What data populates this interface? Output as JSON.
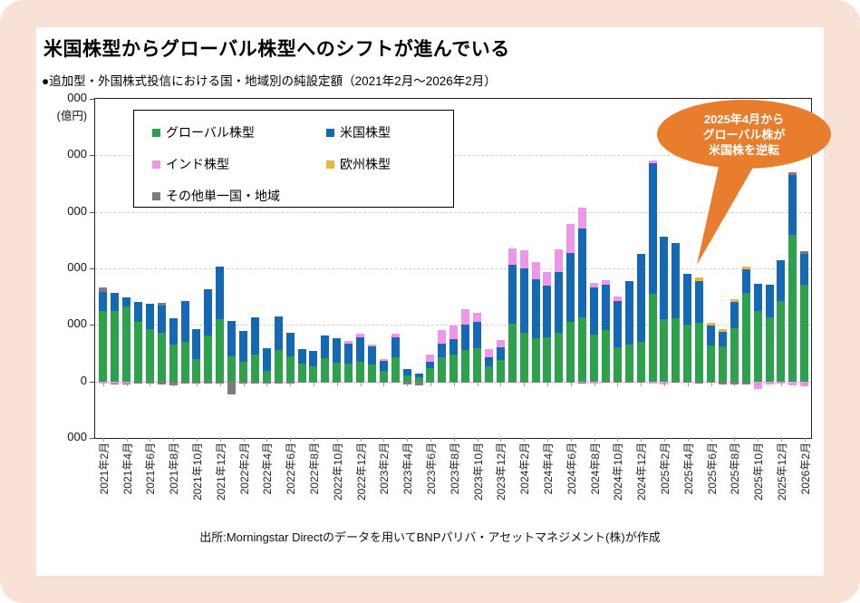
{
  "frame": {
    "background": "#FAE1D5",
    "card_background": "#ffffff"
  },
  "title": "米国株型からグローバル株型へのシフトが進んでいる",
  "subtitle": "●追加型・外国株式投信における国・地域別の純設定額（2021年2月～2026年2月）",
  "source": "出所:Morningstar Directのデータを用いてBNPパリバ・アセットマネジメント(株)が作成",
  "annotation": {
    "lines": [
      "2025年4月から",
      "グローバル株が",
      "米国株を逆転"
    ],
    "color": "#E87D2D",
    "points_to": "2025年4月"
  },
  "y_axis": {
    "unit_label": "(億円)",
    "tick_labels": [
      "000",
      "000",
      "000",
      "000",
      "000",
      "0",
      "000"
    ],
    "tick_values": [
      5000,
      4000,
      3000,
      2000,
      1000,
      0,
      -1000
    ]
  },
  "chart_data": {
    "type": "bar",
    "stacked": true,
    "title": "追加型・外国株式投信における国・地域別の純設定額（2021年2月～2026年2月）",
    "xlabel": "",
    "ylabel": "(億円)",
    "ylim": [
      -1000,
      5000
    ],
    "grid": "horizontal-dashed",
    "legend_position": "top-left-box",
    "categories": [
      "2021年2月",
      "2021年3月",
      "2021年4月",
      "2021年5月",
      "2021年6月",
      "2021年7月",
      "2021年8月",
      "2021年9月",
      "2021年10月",
      "2021年11月",
      "2021年12月",
      "2022年1月",
      "2022年2月",
      "2022年3月",
      "2022年4月",
      "2022年5月",
      "2022年6月",
      "2022年7月",
      "2022年8月",
      "2022年9月",
      "2022年10月",
      "2022年11月",
      "2022年12月",
      "2023年1月",
      "2023年2月",
      "2023年3月",
      "2023年4月",
      "2023年5月",
      "2023年6月",
      "2023年7月",
      "2023年8月",
      "2023年9月",
      "2023年10月",
      "2023年11月",
      "2023年12月",
      "2024年1月",
      "2024年2月",
      "2024年3月",
      "2024年4月",
      "2024年5月",
      "2024年6月",
      "2024年7月",
      "2024年8月",
      "2024年9月",
      "2024年10月",
      "2024年11月",
      "2024年12月",
      "2025年1月",
      "2025年2月",
      "2025年3月",
      "2025年4月",
      "2025年5月",
      "2025年6月",
      "2025年7月",
      "2025年8月",
      "2025年9月",
      "2025年10月",
      "2025年11月",
      "2025年12月",
      "2026年1月",
      "2026年2月"
    ],
    "x_tick_labels": [
      "2021年2月",
      "2021年4月",
      "2021年6月",
      "2021年8月",
      "2021年10月",
      "2021年12月",
      "2022年2月",
      "2022年4月",
      "2022年6月",
      "2022年8月",
      "2022年10月",
      "2022年12月",
      "2023年2月",
      "2023年4月",
      "2023年6月",
      "2023年8月",
      "2023年10月",
      "2023年12月",
      "2024年2月",
      "2024年4月",
      "2024年6月",
      "2024年8月",
      "2024年10月",
      "2024年12月",
      "2025年2月",
      "2025年4月",
      "2025年6月",
      "2025年8月",
      "2025年10月",
      "2025年12月",
      "2026年2月"
    ],
    "series": [
      {
        "name": "グローバル株型",
        "color": "#2DA24C",
        "values": [
          1250,
          1250,
          1320,
          1050,
          920,
          860,
          650,
          700,
          390,
          810,
          1100,
          440,
          350,
          480,
          180,
          560,
          450,
          320,
          270,
          415,
          335,
          320,
          345,
          295,
          185,
          425,
          105,
          75,
          240,
          425,
          480,
          560,
          595,
          270,
          385,
          1025,
          865,
          760,
          785,
          865,
          1050,
          1130,
          835,
          915,
          600,
          650,
          705,
          1550,
          1100,
          1120,
          1010,
          1030,
          640,
          620,
          940,
          1560,
          1250,
          1140,
          1420,
          2595,
          1715
        ]
      },
      {
        "name": "米国株型",
        "color": "#1568B3",
        "values": [
          330,
          320,
          160,
          360,
          450,
          480,
          460,
          730,
          540,
          820,
          930,
          630,
          540,
          650,
          410,
          585,
          415,
          255,
          265,
          395,
          435,
          345,
          440,
          320,
          175,
          360,
          120,
          60,
          105,
          240,
          265,
          450,
          455,
          160,
          215,
          1040,
          1130,
          1040,
          905,
          1065,
          1225,
          1570,
          825,
          800,
          825,
          1120,
          1555,
          2310,
          1460,
          1330,
          900,
          750,
          350,
          250,
          460,
          430,
          480,
          575,
          730,
          1060,
          545
        ]
      },
      {
        "name": "インド株型",
        "color": "#EE96E8",
        "values": [
          0,
          0,
          0,
          0,
          0,
          0,
          0,
          0,
          0,
          0,
          0,
          0,
          0,
          0,
          0,
          0,
          0,
          0,
          0,
          0,
          0,
          55,
          55,
          35,
          40,
          55,
          0,
          0,
          135,
          250,
          240,
          275,
          160,
          140,
          130,
          290,
          320,
          320,
          250,
          400,
          505,
          375,
          80,
          80,
          80,
          0,
          0,
          50,
          0,
          0,
          0,
          0,
          0,
          0,
          0,
          0,
          0,
          0,
          0,
          0,
          0
        ]
      },
      {
        "name": "欧州株型",
        "color": "#E9B838",
        "values": [
          0,
          0,
          0,
          0,
          0,
          0,
          0,
          0,
          0,
          0,
          0,
          0,
          0,
          0,
          0,
          0,
          0,
          0,
          0,
          0,
          0,
          0,
          0,
          0,
          0,
          0,
          0,
          0,
          0,
          0,
          0,
          0,
          0,
          0,
          0,
          0,
          0,
          0,
          0,
          0,
          0,
          0,
          0,
          0,
          0,
          0,
          0,
          0,
          0,
          0,
          0,
          65,
          40,
          55,
          50,
          40,
          0,
          0,
          0,
          0,
          0
        ]
      },
      {
        "name": "その他単一国・地域",
        "color": "#7C7C7C",
        "values": [
          90,
          0,
          0,
          0,
          0,
          55,
          0,
          0,
          0,
          0,
          0,
          0,
          0,
          0,
          0,
          0,
          0,
          0,
          0,
          0,
          0,
          0,
          0,
          0,
          0,
          0,
          0,
          0,
          0,
          0,
          0,
          0,
          0,
          0,
          0,
          0,
          0,
          0,
          0,
          0,
          0,
          0,
          0,
          0,
          0,
          0,
          0,
          0,
          0,
          0,
          0,
          0,
          0,
          0,
          0,
          0,
          0,
          0,
          0,
          40,
          50
        ]
      }
    ],
    "negative_series": [
      {
        "name": "インド株型",
        "color": "#EE96E8",
        "values": [
          -40,
          -30,
          -40,
          0,
          0,
          0,
          0,
          0,
          0,
          0,
          0,
          0,
          0,
          0,
          0,
          0,
          0,
          0,
          0,
          0,
          0,
          0,
          0,
          0,
          0,
          0,
          0,
          0,
          0,
          0,
          0,
          0,
          0,
          0,
          0,
          0,
          0,
          0,
          0,
          0,
          0,
          -25,
          -30,
          0,
          0,
          0,
          0,
          -40,
          -60,
          0,
          0,
          0,
          0,
          0,
          0,
          0,
          -140,
          -60,
          -40,
          -70,
          -80
        ]
      },
      {
        "name": "その他単一国・地域",
        "color": "#7C7C7C",
        "values": [
          0,
          -30,
          -10,
          -45,
          -40,
          -60,
          -70,
          -30,
          -30,
          -40,
          -30,
          -230,
          -30,
          -30,
          -45,
          -30,
          -30,
          -20,
          -20,
          -25,
          -20,
          -20,
          -25,
          -20,
          -20,
          -20,
          -50,
          -70,
          -25,
          -20,
          -20,
          -20,
          -20,
          -20,
          -20,
          -20,
          -20,
          -25,
          -20,
          -20,
          -25,
          -20,
          0,
          -25,
          -25,
          -25,
          -25,
          0,
          0,
          -25,
          -25,
          -30,
          -20,
          -60,
          -50,
          -55,
          0,
          0,
          0,
          0,
          0
        ]
      }
    ]
  }
}
